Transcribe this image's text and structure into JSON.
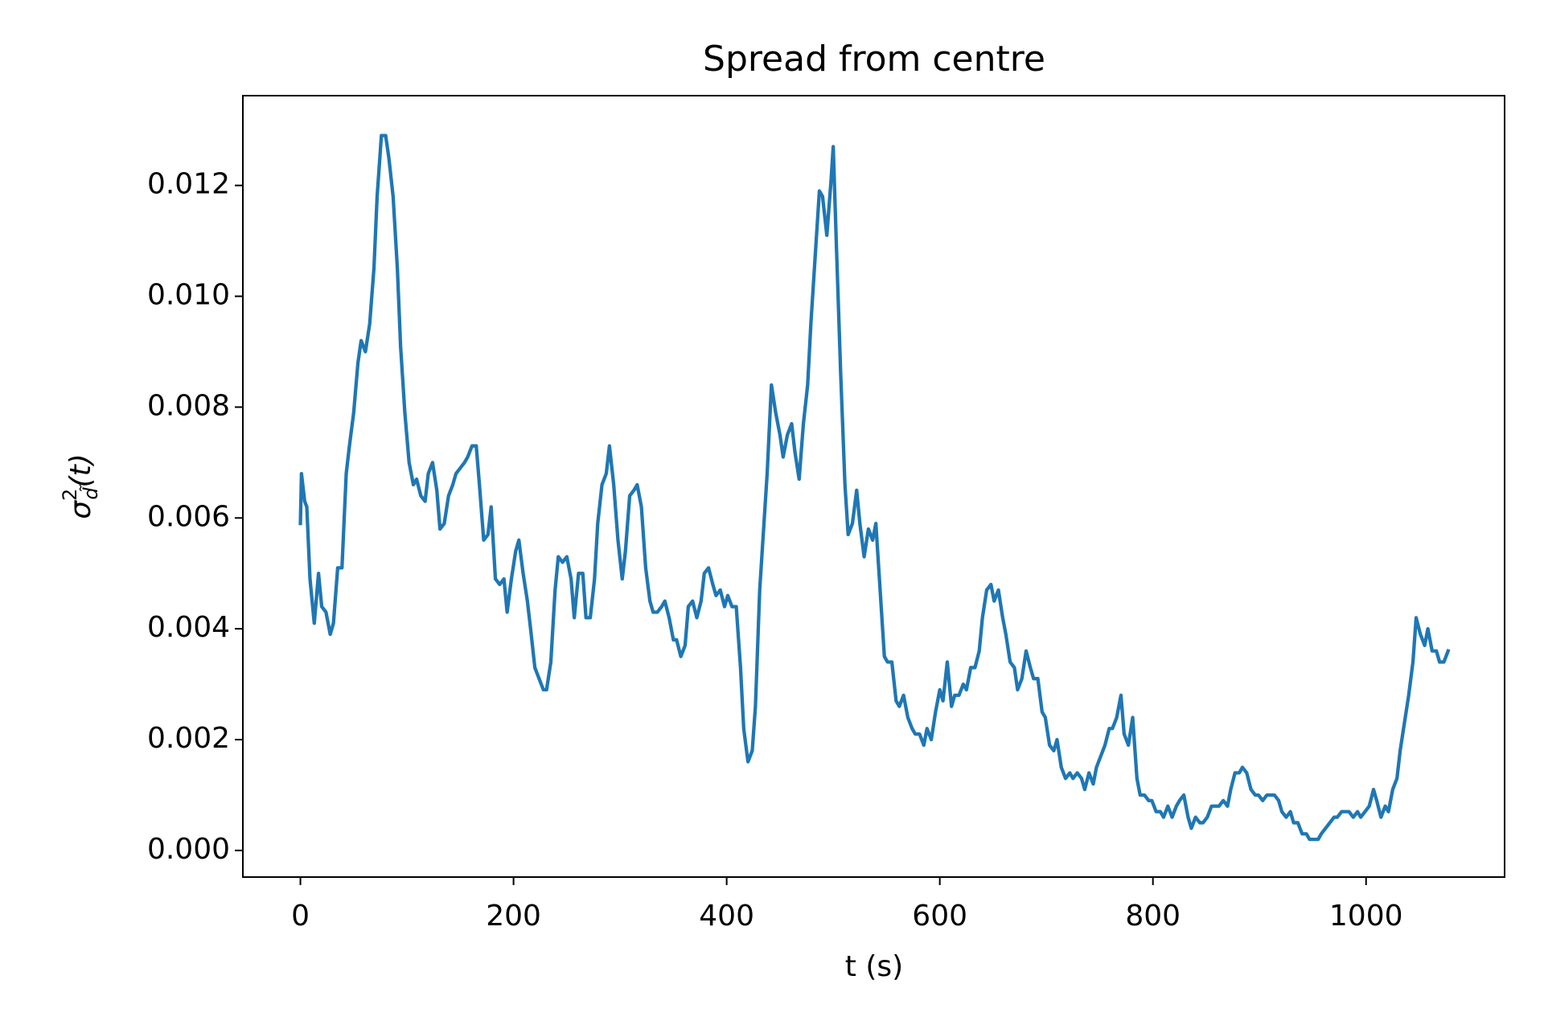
{
  "chart_data": {
    "type": "line",
    "title": "Spread from centre",
    "xlabel": "t (s)",
    "ylabel": {
      "symbol": "σ",
      "superscript": "2",
      "subscript": "d̃",
      "argument": "(t)"
    },
    "color": "#1f77b4",
    "xlim": [
      -54,
      1130
    ],
    "ylim": [
      -0.00048,
      0.01362
    ],
    "xticks": [
      0,
      200,
      400,
      600,
      800,
      1000
    ],
    "yticks": [
      {
        "value": 0,
        "label": "0.000"
      },
      0.002,
      0.004,
      0.006,
      0.008,
      {
        "value": 0.01,
        "label": "0.010"
      },
      0.012
    ],
    "x": [
      0,
      1,
      4,
      6,
      9,
      13,
      17,
      20,
      24,
      28,
      31,
      35,
      39,
      43,
      46,
      50,
      54,
      57,
      61,
      65,
      69,
      72,
      76,
      80,
      83,
      87,
      91,
      94,
      98,
      102,
      106,
      109,
      113,
      117,
      120,
      124,
      128,
      131,
      135,
      139,
      143,
      146,
      150,
      154,
      157,
      161,
      165,
      168,
      172,
      176,
      179,
      183,
      187,
      191,
      194,
      198,
      202,
      205,
      209,
      213,
      216,
      220,
      224,
      228,
      231,
      235,
      239,
      242,
      246,
      250,
      254,
      257,
      261,
      265,
      268,
      272,
      276,
      279,
      283,
      287,
      290,
      294,
      298,
      302,
      305,
      309,
      313,
      316,
      320,
      324,
      328,
      331,
      335,
      339,
      342,
      346,
      350,
      353,
      357,
      361,
      364,
      368,
      372,
      376,
      379,
      383,
      387,
      390,
      394,
      398,
      401,
      405,
      409,
      413,
      416,
      420,
      424,
      427,
      431,
      435,
      438,
      442,
      446,
      450,
      453,
      457,
      461,
      464,
      468,
      472,
      476,
      479,
      483,
      487,
      490,
      494,
      498,
      500,
      503,
      507,
      511,
      514,
      518,
      522,
      525,
      529,
      533,
      537,
      540,
      544,
      548,
      551,
      555,
      559,
      562,
      566,
      570,
      574,
      577,
      581,
      585,
      588,
      592,
      596,
      600,
      603,
      607,
      611,
      614,
      618,
      622,
      625,
      629,
      633,
      637,
      640,
      644,
      648,
      651,
      655,
      659,
      662,
      666,
      670,
      673,
      677,
      681,
      685,
      688,
      692,
      696,
      699,
      703,
      707,
      710,
      714,
      718,
      722,
      725,
      729,
      733,
      736,
      740,
      744,
      747,
      751,
      755,
      759,
      762,
      766,
      770,
      773,
      777,
      781,
      785,
      788,
      792,
      796,
      799,
      803,
      807,
      810,
      814,
      818,
      822,
      825,
      829,
      833,
      836,
      840,
      844,
      847,
      851,
      855,
      858,
      862,
      866,
      870,
      873,
      877,
      881,
      884,
      888,
      892,
      896,
      899,
      903,
      907,
      910,
      914,
      918,
      921,
      925,
      929,
      932,
      936,
      940,
      944,
      947,
      951,
      955,
      958,
      962,
      966,
      970,
      973,
      977,
      981,
      984,
      988,
      992,
      995,
      999,
      1003,
      1007,
      1010,
      1014,
      1018,
      1021,
      1025,
      1029,
      1032,
      1036,
      1040,
      1044,
      1047,
      1051,
      1055,
      1058,
      1062,
      1066,
      1069,
      1073,
      1077
    ],
    "values": [
      0.0059,
      0.0068,
      0.0063,
      0.0062,
      0.0049,
      0.0041,
      0.005,
      0.0044,
      0.0043,
      0.0039,
      0.0041,
      0.0051,
      0.0051,
      0.0068,
      0.0073,
      0.0079,
      0.0088,
      0.0092,
      0.009,
      0.0095,
      0.0105,
      0.0118,
      0.0129,
      0.0129,
      0.0125,
      0.0118,
      0.0105,
      0.0091,
      0.0079,
      0.007,
      0.0066,
      0.0067,
      0.0064,
      0.0063,
      0.0068,
      0.007,
      0.0065,
      0.0058,
      0.0059,
      0.0064,
      0.0066,
      0.0068,
      0.0069,
      0.007,
      0.0071,
      0.0073,
      0.0073,
      0.0066,
      0.0056,
      0.0057,
      0.0062,
      0.0049,
      0.0048,
      0.0049,
      0.0043,
      0.0049,
      0.0054,
      0.0056,
      0.005,
      0.0045,
      0.004,
      0.0033,
      0.0031,
      0.0029,
      0.0029,
      0.0034,
      0.0047,
      0.0053,
      0.0052,
      0.0053,
      0.0049,
      0.0042,
      0.005,
      0.005,
      0.0042,
      0.0042,
      0.0049,
      0.0059,
      0.0066,
      0.0068,
      0.0073,
      0.0066,
      0.0056,
      0.0049,
      0.0054,
      0.0064,
      0.0065,
      0.0066,
      0.0062,
      0.0051,
      0.0045,
      0.0043,
      0.0043,
      0.0044,
      0.0045,
      0.0042,
      0.0038,
      0.0038,
      0.0035,
      0.0037,
      0.0044,
      0.0045,
      0.0042,
      0.0045,
      0.005,
      0.0051,
      0.0048,
      0.0046,
      0.0047,
      0.0044,
      0.0046,
      0.0044,
      0.0044,
      0.0033,
      0.0022,
      0.0016,
      0.0018,
      0.0026,
      0.0047,
      0.0059,
      0.0068,
      0.0084,
      0.0079,
      0.0075,
      0.0071,
      0.0075,
      0.0077,
      0.0072,
      0.0067,
      0.0077,
      0.0084,
      0.0095,
      0.0107,
      0.0119,
      0.0118,
      0.0111,
      0.0121,
      0.0127,
      0.0109,
      0.0086,
      0.0066,
      0.0057,
      0.0059,
      0.0065,
      0.0059,
      0.0053,
      0.0058,
      0.0056,
      0.0059,
      0.0047,
      0.0035,
      0.0034,
      0.0034,
      0.0027,
      0.0026,
      0.0028,
      0.0024,
      0.0022,
      0.0021,
      0.0021,
      0.0019,
      0.0022,
      0.002,
      0.0025,
      0.0029,
      0.0027,
      0.0034,
      0.0026,
      0.0028,
      0.0028,
      0.003,
      0.0029,
      0.0033,
      0.0033,
      0.0036,
      0.0042,
      0.0047,
      0.0048,
      0.0045,
      0.0047,
      0.0042,
      0.0039,
      0.0034,
      0.0033,
      0.0029,
      0.0031,
      0.0036,
      0.0033,
      0.0031,
      0.0031,
      0.0025,
      0.0024,
      0.0019,
      0.0018,
      0.002,
      0.0015,
      0.0013,
      0.0014,
      0.0013,
      0.0014,
      0.0013,
      0.0011,
      0.0014,
      0.0012,
      0.0015,
      0.0017,
      0.0019,
      0.0022,
      0.0022,
      0.0024,
      0.0028,
      0.0021,
      0.0019,
      0.0024,
      0.0013,
      0.001,
      0.001,
      0.0009,
      0.0009,
      0.0007,
      0.0007,
      0.0006,
      0.0008,
      0.0006,
      0.0008,
      0.0009,
      0.001,
      0.0006,
      0.0004,
      0.0006,
      0.0005,
      0.0005,
      0.0006,
      0.0008,
      0.0008,
      0.0008,
      0.0009,
      0.0008,
      0.0011,
      0.0014,
      0.0014,
      0.0015,
      0.0014,
      0.0011,
      0.001,
      0.001,
      0.0009,
      0.001,
      0.001,
      0.001,
      0.0009,
      0.0007,
      0.0006,
      0.0007,
      0.0005,
      0.0005,
      0.0003,
      0.0003,
      0.0002,
      0.0002,
      0.0002,
      0.0003,
      0.0004,
      0.0005,
      0.0006,
      0.0006,
      0.0007,
      0.0007,
      0.0007,
      0.0006,
      0.0007,
      0.0006,
      0.0007,
      0.0008,
      0.0011,
      0.0009,
      0.0006,
      0.0008,
      0.0007,
      0.0011,
      0.0013,
      0.0018,
      0.0023,
      0.0028,
      0.0034,
      0.0042,
      0.0039,
      0.0037,
      0.004,
      0.0036,
      0.0036,
      0.0034,
      0.0034,
      0.0036
    ]
  }
}
